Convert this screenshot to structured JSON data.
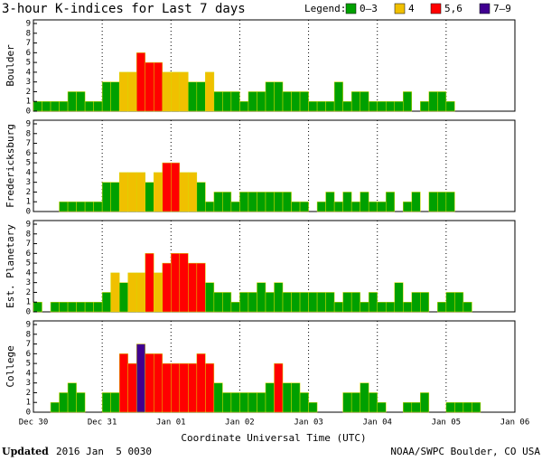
{
  "chart_data": {
    "type": "bar",
    "title": "3-hour K-indices for Last 7 days",
    "legend_title": "Legend:",
    "legend": [
      {
        "name": "0–3",
        "color": "#00a000"
      },
      {
        "name": "4",
        "color": "#f0c000"
      },
      {
        "name": "5,6",
        "color": "#ff0000"
      },
      {
        "name": "7–9",
        "color": "#400090"
      }
    ],
    "x_labels": [
      "Dec 30",
      "Dec 31",
      "Jan 01",
      "Jan 02",
      "Jan 03",
      "Jan 04",
      "Jan 05",
      "Jan 06"
    ],
    "xlabel": "Coordinate Universal Time (UTC)",
    "ylim": [
      0,
      9
    ],
    "yticks": [
      0,
      1,
      2,
      3,
      4,
      5,
      6,
      7,
      8,
      9
    ],
    "grid": true,
    "panels": [
      {
        "ylabel": "Boulder",
        "values": [
          1,
          1,
          1,
          1,
          2,
          2,
          1,
          1,
          3,
          3,
          4,
          4,
          6,
          5,
          5,
          4,
          4,
          4,
          3,
          3,
          4,
          2,
          2,
          2,
          1,
          2,
          2,
          3,
          3,
          2,
          2,
          2,
          1,
          1,
          1,
          3,
          1,
          2,
          2,
          1,
          1,
          1,
          1,
          2,
          0,
          1,
          2,
          2,
          1,
          0,
          0,
          0,
          0,
          0,
          0,
          0
        ]
      },
      {
        "ylabel": "Fredericksburg",
        "values": [
          0,
          0,
          0,
          1,
          1,
          1,
          1,
          1,
          3,
          3,
          4,
          4,
          4,
          3,
          4,
          5,
          5,
          4,
          4,
          3,
          1,
          2,
          2,
          1,
          2,
          2,
          2,
          2,
          2,
          2,
          1,
          1,
          0,
          1,
          2,
          1,
          2,
          1,
          2,
          1,
          1,
          2,
          0,
          1,
          2,
          0,
          2,
          2,
          2,
          0,
          0,
          0,
          0,
          0,
          0,
          0
        ]
      },
      {
        "ylabel": "Est. Planetary",
        "values": [
          1,
          0,
          1,
          1,
          1,
          1,
          1,
          1,
          2,
          4,
          3,
          4,
          4,
          6,
          4,
          5,
          6,
          6,
          5,
          5,
          3,
          2,
          2,
          1,
          2,
          2,
          3,
          2,
          3,
          2,
          2,
          2,
          2,
          2,
          2,
          1,
          2,
          2,
          1,
          2,
          1,
          1,
          3,
          1,
          2,
          2,
          0,
          1,
          2,
          2,
          1,
          0,
          0,
          0,
          0,
          0
        ]
      },
      {
        "ylabel": "College",
        "values": [
          0,
          0,
          1,
          2,
          3,
          2,
          0,
          0,
          2,
          2,
          6,
          5,
          7,
          6,
          6,
          5,
          5,
          5,
          5,
          6,
          5,
          3,
          2,
          2,
          2,
          2,
          2,
          3,
          5,
          3,
          3,
          2,
          1,
          0,
          0,
          0,
          2,
          2,
          3,
          2,
          1,
          0,
          0,
          1,
          1,
          2,
          0,
          0,
          1,
          1,
          1,
          1,
          0,
          0,
          0,
          0
        ]
      }
    ]
  },
  "footer": {
    "updated_label": "Updated",
    "updated": "2016 Jan  5 0030",
    "source": "NOAA/SWPC Boulder, CO USA"
  }
}
